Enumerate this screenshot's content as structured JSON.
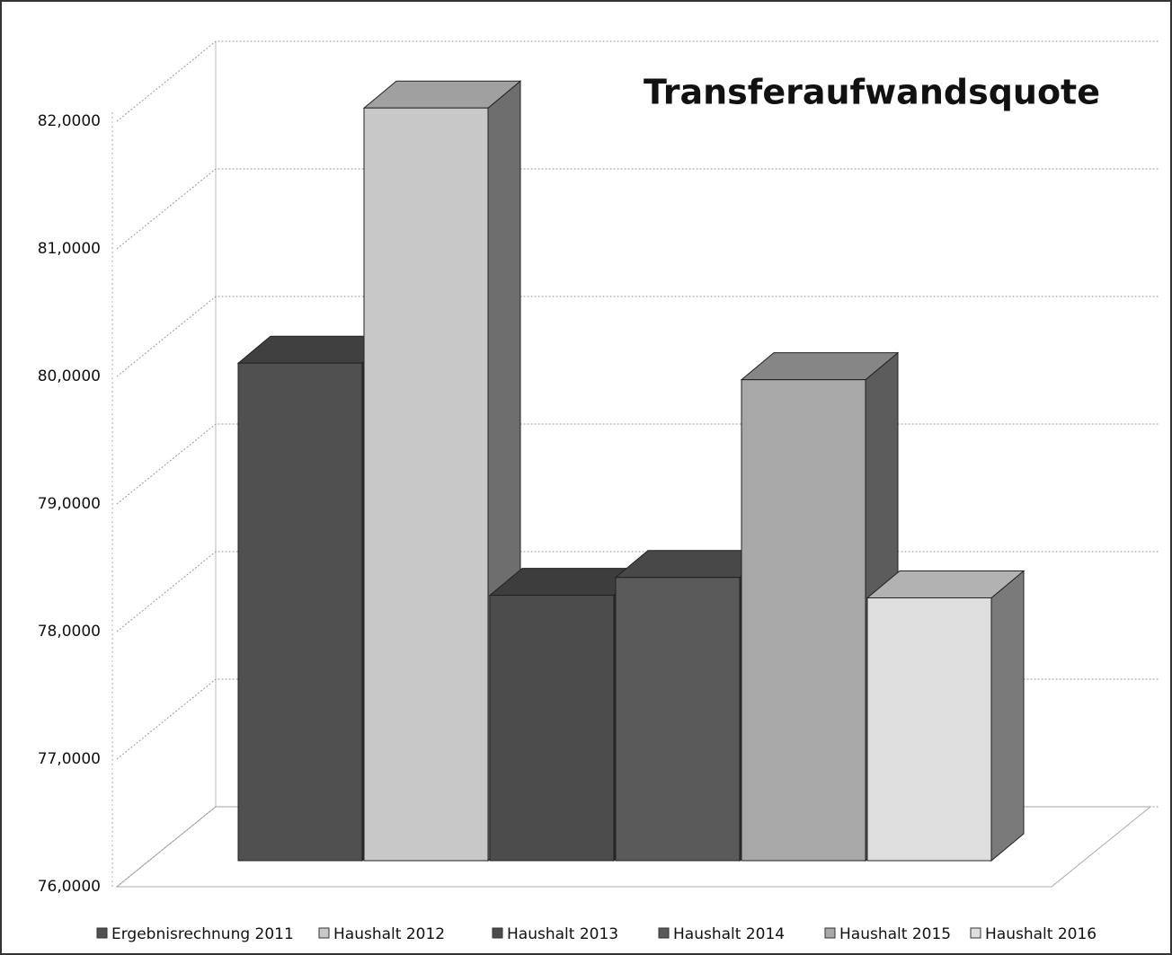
{
  "chart_data": {
    "type": "bar",
    "title": "Transferaufwandsquote",
    "categories": [
      null
    ],
    "series": [
      {
        "name": "Ergebnisrechnung 2011",
        "color": "#505050",
        "values": [
          79.9
        ]
      },
      {
        "name": "Haushalt 2012",
        "color": "#c8c8c8",
        "values": [
          81.9
        ]
      },
      {
        "name": "Haushalt 2013",
        "color": "#4c4c4c",
        "values": [
          78.08
        ]
      },
      {
        "name": "Haushalt 2014",
        "color": "#5a5a5a",
        "values": [
          78.22
        ]
      },
      {
        "name": "Haushalt 2015",
        "color": "#a8a8a8",
        "values": [
          79.77
        ]
      },
      {
        "name": "Haushalt 2016",
        "color": "#dedede",
        "values": [
          78.06
        ]
      }
    ],
    "ylim": [
      76,
      82
    ],
    "yticks": [
      {
        "value": 76,
        "label": "76,0000"
      },
      {
        "value": 77,
        "label": "77,0000"
      },
      {
        "value": 78,
        "label": "78,0000"
      },
      {
        "value": 79,
        "label": "79,0000"
      },
      {
        "value": 80,
        "label": "80,0000"
      },
      {
        "value": 81,
        "label": "81,0000"
      },
      {
        "value": 82,
        "label": "82,0000"
      }
    ],
    "grid": true,
    "legend": "bottom"
  }
}
